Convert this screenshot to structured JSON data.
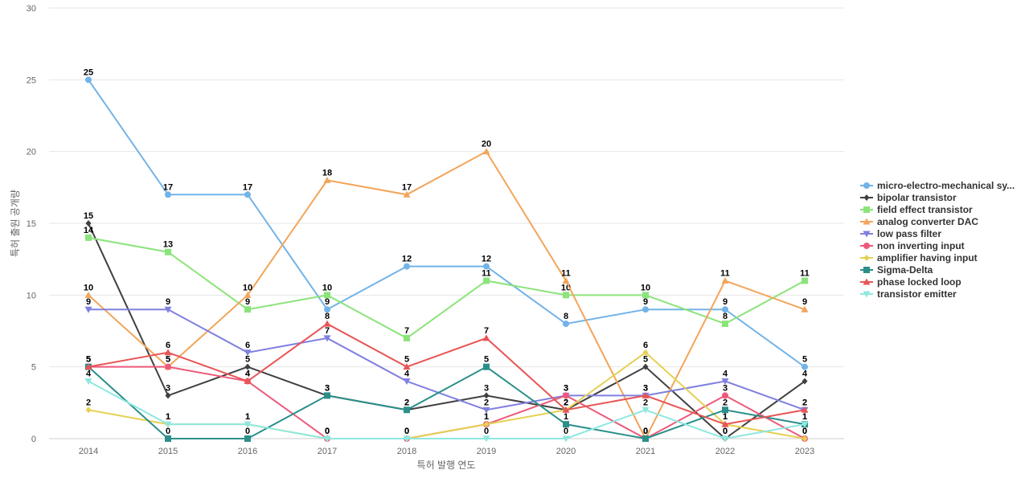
{
  "chart_data": {
    "type": "line",
    "title": "",
    "xlabel": "특허 발행 연도",
    "ylabel": "특허 출원 공개량",
    "ylim": [
      0,
      30
    ],
    "yticks": [
      0,
      5,
      10,
      15,
      20,
      25,
      30
    ],
    "categories": [
      "2014",
      "2015",
      "2016",
      "2017",
      "2018",
      "2019",
      "2020",
      "2021",
      "2022",
      "2023"
    ],
    "grid": true,
    "legend_position": "right",
    "series": [
      {
        "name": "micro-electro-mechanical sy...",
        "color": "#72b3e8",
        "marker": "circle",
        "values": [
          25,
          17,
          17,
          9,
          12,
          12,
          8,
          9,
          9,
          5
        ]
      },
      {
        "name": "bipolar transistor",
        "color": "#404040",
        "marker": "diamond",
        "values": [
          15,
          3,
          5,
          3,
          2,
          3,
          2,
          5,
          0,
          4
        ]
      },
      {
        "name": "field effect transistor",
        "color": "#8be47a",
        "marker": "square",
        "values": [
          14,
          13,
          9,
          10,
          7,
          11,
          10,
          10,
          8,
          11
        ]
      },
      {
        "name": "analog converter DAC",
        "color": "#f2a55a",
        "marker": "triangle-up",
        "values": [
          10,
          5,
          10,
          18,
          17,
          20,
          11,
          0,
          11,
          9
        ]
      },
      {
        "name": "low pass filter",
        "color": "#8080e0",
        "marker": "triangle-down",
        "values": [
          9,
          9,
          6,
          7,
          4,
          2,
          3,
          3,
          4,
          2
        ]
      },
      {
        "name": "non inverting input",
        "color": "#ec5a7a",
        "marker": "circle",
        "values": [
          5,
          5,
          4,
          0,
          0,
          1,
          3,
          0,
          3,
          0
        ]
      },
      {
        "name": "amplifier having input",
        "color": "#e6d053",
        "marker": "diamond",
        "values": [
          2,
          1,
          1,
          0,
          0,
          1,
          2,
          6,
          1,
          0
        ]
      },
      {
        "name": "Sigma-Delta",
        "color": "#2b8f8a",
        "marker": "square",
        "values": [
          5,
          0,
          0,
          3,
          2,
          5,
          1,
          0,
          2,
          1
        ]
      },
      {
        "name": "phase locked loop",
        "color": "#e85555",
        "marker": "triangle-up",
        "values": [
          5,
          6,
          4,
          8,
          5,
          7,
          2,
          3,
          1,
          2
        ]
      },
      {
        "name": "transistor emitter",
        "color": "#8ee8e0",
        "marker": "triangle-down",
        "values": [
          4,
          1,
          1,
          0,
          0,
          0,
          0,
          2,
          0,
          1
        ]
      }
    ]
  }
}
